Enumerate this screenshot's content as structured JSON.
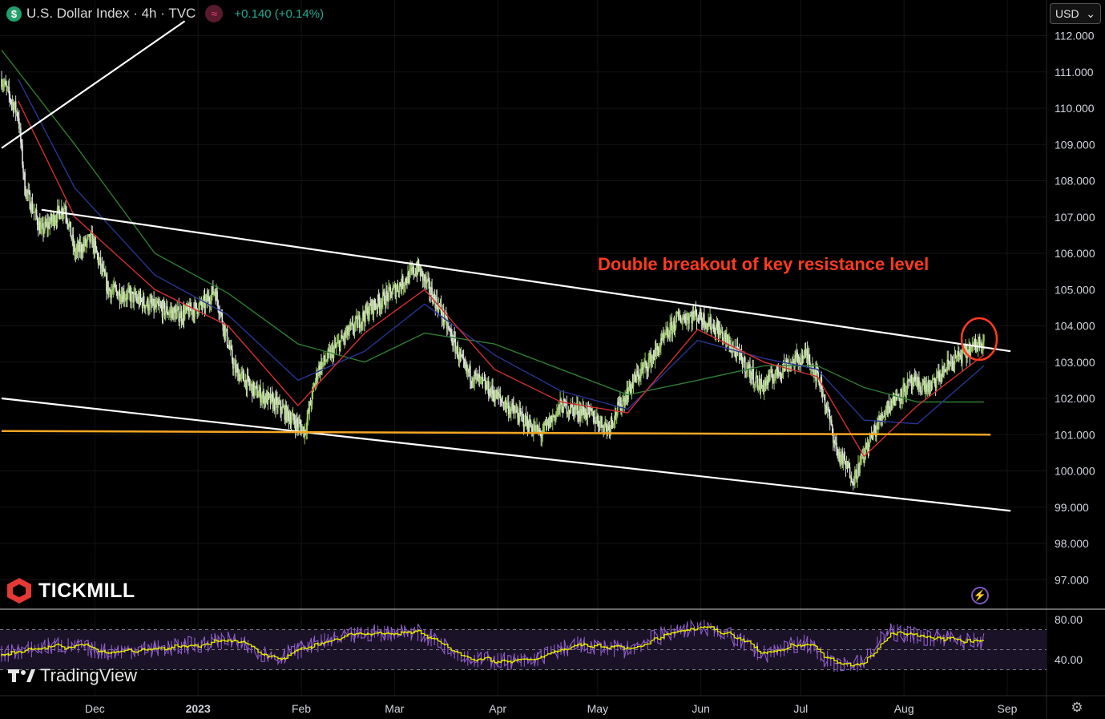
{
  "header": {
    "symbol_icon": "$",
    "title": "U.S. Dollar Index · 4h · TVC",
    "change": "+0.140 (+0.14%)"
  },
  "currency_select": {
    "value": "USD"
  },
  "branding": {
    "broker": "TICKMILL",
    "platform": "TradingView"
  },
  "annotation": {
    "text": "Double breakout of key resistance level"
  },
  "colors": {
    "background": "#000000",
    "up_candle": "#9ccc65",
    "down_candle": "#e0e0e0",
    "ema_fast": "#d32f2f",
    "ema_mid": "#283593",
    "ema_slow": "#2e7d32",
    "trendline": "#ffffff",
    "support": "#f5a623",
    "annotation": "#ff3b1f",
    "rsi": "#8e5cc9",
    "rsi_ma": "#e6e600"
  },
  "chart_data": {
    "type": "line",
    "title": "",
    "y_axis": {
      "min": 96.5,
      "max": 112.2,
      "ticks": [
        "112.000",
        "111.000",
        "110.000",
        "109.000",
        "108.000",
        "107.000",
        "106.000",
        "105.000",
        "104.000",
        "103.000",
        "102.000",
        "101.000",
        "100.000",
        "99.000",
        "98.000",
        "97.000"
      ]
    },
    "x_axis": {
      "ticks": [
        {
          "label": "Dec",
          "date": "2022-12-01"
        },
        {
          "label": "2023",
          "date": "2023-01-01"
        },
        {
          "label": "Feb",
          "date": "2023-02-01"
        },
        {
          "label": "Mar",
          "date": "2023-03-01"
        },
        {
          "label": "Apr",
          "date": "2023-04-01"
        },
        {
          "label": "May",
          "date": "2023-05-01"
        },
        {
          "label": "Jun",
          "date": "2023-06-01"
        },
        {
          "label": "Jul",
          "date": "2023-07-01"
        },
        {
          "label": "Aug",
          "date": "2023-08-01"
        },
        {
          "label": "Sep",
          "date": "2023-09-01"
        }
      ]
    },
    "price_series": {
      "name": "DXY",
      "points": [
        [
          "2022-11-03",
          110.8
        ],
        [
          "2022-11-08",
          109.8
        ],
        [
          "2022-11-10",
          107.8
        ],
        [
          "2022-11-15",
          106.6
        ],
        [
          "2022-11-22",
          107.3
        ],
        [
          "2022-11-25",
          106.0
        ],
        [
          "2022-11-30",
          106.4
        ],
        [
          "2022-12-05",
          105.0
        ],
        [
          "2022-12-12",
          104.8
        ],
        [
          "2022-12-19",
          104.5
        ],
        [
          "2022-12-27",
          104.3
        ],
        [
          "2023-01-03",
          104.6
        ],
        [
          "2023-01-06",
          105.0
        ],
        [
          "2023-01-12",
          102.8
        ],
        [
          "2023-01-18",
          102.2
        ],
        [
          "2023-01-25",
          101.8
        ],
        [
          "2023-02-02",
          101.1
        ],
        [
          "2023-02-06",
          102.8
        ],
        [
          "2023-02-15",
          103.8
        ],
        [
          "2023-02-22",
          104.5
        ],
        [
          "2023-02-28",
          104.9
        ],
        [
          "2023-03-08",
          105.6
        ],
        [
          "2023-03-15",
          104.4
        ],
        [
          "2023-03-22",
          102.8
        ],
        [
          "2023-03-30",
          102.2
        ],
        [
          "2023-04-05",
          101.7
        ],
        [
          "2023-04-14",
          101.0
        ],
        [
          "2023-04-20",
          101.8
        ],
        [
          "2023-04-28",
          101.6
        ],
        [
          "2023-05-04",
          101.2
        ],
        [
          "2023-05-12",
          102.5
        ],
        [
          "2023-05-18",
          103.2
        ],
        [
          "2023-05-25",
          104.2
        ],
        [
          "2023-05-31",
          104.3
        ],
        [
          "2023-06-06",
          103.9
        ],
        [
          "2023-06-13",
          103.1
        ],
        [
          "2023-06-19",
          102.3
        ],
        [
          "2023-06-26",
          102.9
        ],
        [
          "2023-07-03",
          103.2
        ],
        [
          "2023-07-07",
          102.4
        ],
        [
          "2023-07-12",
          100.5
        ],
        [
          "2023-07-17",
          99.8
        ],
        [
          "2023-07-21",
          100.7
        ],
        [
          "2023-07-27",
          101.8
        ],
        [
          "2023-08-03",
          102.4
        ],
        [
          "2023-08-09",
          102.3
        ],
        [
          "2023-08-15",
          103.0
        ],
        [
          "2023-08-22",
          103.4
        ],
        [
          "2023-08-25",
          103.7
        ]
      ]
    },
    "ema_fast": [
      [
        "2022-11-08",
        110.2
      ],
      [
        "2022-11-25",
        107.0
      ],
      [
        "2022-12-19",
        105.0
      ],
      [
        "2023-01-10",
        104.0
      ],
      [
        "2023-01-31",
        101.8
      ],
      [
        "2023-02-20",
        103.8
      ],
      [
        "2023-03-10",
        105.0
      ],
      [
        "2023-03-31",
        102.8
      ],
      [
        "2023-04-20",
        101.9
      ],
      [
        "2023-05-10",
        101.6
      ],
      [
        "2023-05-31",
        103.9
      ],
      [
        "2023-06-20",
        103.0
      ],
      [
        "2023-07-06",
        102.6
      ],
      [
        "2023-07-20",
        100.4
      ],
      [
        "2023-08-05",
        101.8
      ],
      [
        "2023-08-25",
        103.2
      ]
    ],
    "ema_mid": [
      [
        "2022-11-08",
        110.8
      ],
      [
        "2022-11-25",
        107.8
      ],
      [
        "2022-12-19",
        105.4
      ],
      [
        "2023-01-10",
        104.3
      ],
      [
        "2023-01-31",
        102.5
      ],
      [
        "2023-02-20",
        103.3
      ],
      [
        "2023-03-10",
        104.6
      ],
      [
        "2023-03-31",
        103.2
      ],
      [
        "2023-04-20",
        102.2
      ],
      [
        "2023-05-10",
        101.7
      ],
      [
        "2023-05-31",
        103.6
      ],
      [
        "2023-06-20",
        103.1
      ],
      [
        "2023-07-06",
        102.8
      ],
      [
        "2023-07-20",
        101.4
      ],
      [
        "2023-08-05",
        101.3
      ],
      [
        "2023-08-25",
        102.9
      ]
    ],
    "ema_slow": [
      [
        "2022-11-03",
        111.6
      ],
      [
        "2022-11-25",
        109.0
      ],
      [
        "2022-12-19",
        106.0
      ],
      [
        "2023-01-10",
        104.9
      ],
      [
        "2023-01-31",
        103.5
      ],
      [
        "2023-02-20",
        103.0
      ],
      [
        "2023-03-10",
        103.8
      ],
      [
        "2023-03-31",
        103.5
      ],
      [
        "2023-04-20",
        102.8
      ],
      [
        "2023-05-10",
        102.1
      ],
      [
        "2023-05-31",
        102.5
      ],
      [
        "2023-06-20",
        102.9
      ],
      [
        "2023-07-06",
        102.9
      ],
      [
        "2023-07-20",
        102.3
      ],
      [
        "2023-08-05",
        101.9
      ],
      [
        "2023-08-25",
        101.9
      ]
    ],
    "trendlines": [
      {
        "name": "upper-channel",
        "from": [
          "2022-11-15",
          107.2
        ],
        "to": [
          "2023-09-02",
          103.3
        ]
      },
      {
        "name": "lower-channel",
        "from": [
          "2022-11-03",
          102.0
        ],
        "to": [
          "2023-09-02",
          98.9
        ]
      },
      {
        "name": "early-support",
        "from": [
          "2022-11-03",
          108.9
        ],
        "to": [
          "2022-12-28",
          112.4
        ]
      },
      {
        "name": "key-support",
        "from": [
          "2022-11-03",
          101.1
        ],
        "to": [
          "2023-08-27",
          101.0
        ]
      }
    ],
    "rsi": {
      "ylim": [
        25,
        85
      ],
      "ticks": [
        "80.00",
        "40.00"
      ],
      "bands": [
        70,
        50,
        30
      ],
      "points": [
        [
          "2022-11-03",
          45
        ],
        [
          "2022-11-20",
          55
        ],
        [
          "2022-12-05",
          48
        ],
        [
          "2022-12-25",
          52
        ],
        [
          "2023-01-10",
          60
        ],
        [
          "2023-01-25",
          42
        ],
        [
          "2023-02-05",
          55
        ],
        [
          "2023-02-20",
          66
        ],
        [
          "2023-03-08",
          68
        ],
        [
          "2023-03-25",
          40
        ],
        [
          "2023-04-10",
          38
        ],
        [
          "2023-04-25",
          55
        ],
        [
          "2023-05-10",
          50
        ],
        [
          "2023-05-25",
          70
        ],
        [
          "2023-06-05",
          72
        ],
        [
          "2023-06-20",
          45
        ],
        [
          "2023-07-03",
          58
        ],
        [
          "2023-07-12",
          32
        ],
        [
          "2023-07-20",
          38
        ],
        [
          "2023-07-28",
          68
        ],
        [
          "2023-08-10",
          62
        ],
        [
          "2023-08-25",
          58
        ]
      ]
    }
  }
}
